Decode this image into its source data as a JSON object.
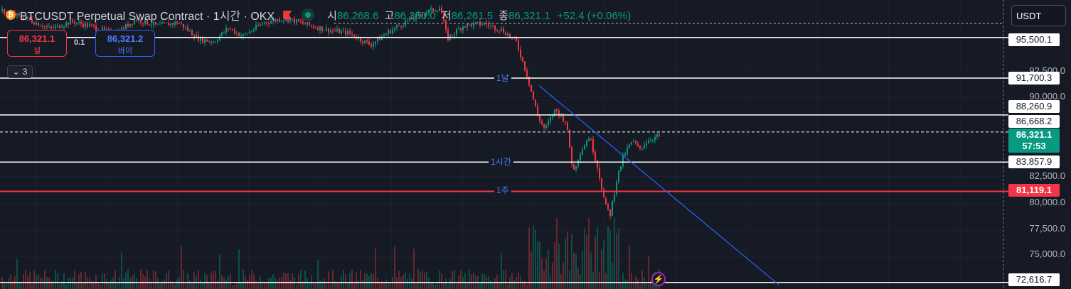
{
  "legend": {
    "coin_icon": "bitcoin-icon",
    "symbol": "BTCUSDT Perpetual Swap Contract · 1시간 · OKX",
    "open_key": "시",
    "open": "86,268.6",
    "high_key": "고",
    "high": "86,350.0",
    "low_key": "저",
    "low": "86,261.5",
    "close_key": "종",
    "close": "86,321.1",
    "change": "+52.4 (+0.06%)"
  },
  "trade": {
    "sell_price": "86,321.1",
    "sell_label": "셀",
    "quantity": "0.1",
    "buy_price": "86,321.2",
    "buy_label": "바이"
  },
  "indicator_toggle": "3",
  "currency": "USDT",
  "price_scale": [
    "92,500.0",
    "90,000.0",
    "82,500.0",
    "80,000.0",
    "77,500.0",
    "75,000.0"
  ],
  "price_labels": {
    "p95500": "95,500.1",
    "p91700": "91,700.3",
    "p88260": "88,260.9",
    "p86668": "86,668.2",
    "last_price": "86,321.1",
    "countdown": "57:53",
    "p83857": "83,857.9",
    "p81119": "81,119.1",
    "p72616": "72,616.7"
  },
  "line_tags": {
    "day": "1날",
    "hour": "1시간",
    "week": "1주"
  },
  "colors": {
    "bg": "#161a25",
    "up": "#089981",
    "down": "#f23645",
    "accent": "#2962ff"
  },
  "chart_data": {
    "type": "candlestick",
    "title": "BTCUSDT Perpetual Swap Contract · 1시간 · OKX",
    "ylim": [
      72000,
      99000
    ],
    "y_ticks": [
      75000,
      77500,
      80000,
      82500,
      90000,
      92500
    ],
    "horizontal_levels": [
      {
        "value": 95500.1,
        "color": "#ffffff"
      },
      {
        "value": 91700.3,
        "color": "#ffffff",
        "tag": "1날"
      },
      {
        "value": 88260.9,
        "color": "#ffffff"
      },
      {
        "value": 86668.2,
        "color": "#ffffff",
        "style": "dashed"
      },
      {
        "value": 83857.9,
        "color": "#ffffff",
        "tag": "1시간"
      },
      {
        "value": 81119.1,
        "color": "#f23645",
        "tag": "1주"
      },
      {
        "value": 72616.7,
        "color": "#ffffff"
      }
    ],
    "trendline": {
      "start": 91000,
      "end": 72400
    },
    "price_path": [
      {
        "t": 0,
        "p": 98000
      },
      {
        "t": 35,
        "p": 97300
      },
      {
        "t": 70,
        "p": 96300
      },
      {
        "t": 100,
        "p": 97000
      },
      {
        "t": 130,
        "p": 96500
      },
      {
        "t": 160,
        "p": 95800
      },
      {
        "t": 190,
        "p": 97200
      },
      {
        "t": 220,
        "p": 96600
      },
      {
        "t": 250,
        "p": 96900
      },
      {
        "t": 280,
        "p": 95300
      },
      {
        "t": 300,
        "p": 95100
      },
      {
        "t": 320,
        "p": 96400
      },
      {
        "t": 340,
        "p": 95600
      },
      {
        "t": 370,
        "p": 96900
      },
      {
        "t": 400,
        "p": 97300
      },
      {
        "t": 430,
        "p": 96700
      },
      {
        "t": 460,
        "p": 96200
      },
      {
        "t": 490,
        "p": 95900
      },
      {
        "t": 520,
        "p": 94800
      },
      {
        "t": 545,
        "p": 96000
      },
      {
        "t": 570,
        "p": 97000
      },
      {
        "t": 600,
        "p": 97900
      },
      {
        "t": 618,
        "p": 98300
      },
      {
        "t": 628,
        "p": 95400
      },
      {
        "t": 650,
        "p": 96600
      },
      {
        "t": 680,
        "p": 96800
      },
      {
        "t": 705,
        "p": 96200
      },
      {
        "t": 725,
        "p": 95100
      },
      {
        "t": 740,
        "p": 92000
      },
      {
        "t": 755,
        "p": 88200
      },
      {
        "t": 765,
        "p": 86900
      },
      {
        "t": 780,
        "p": 88800
      },
      {
        "t": 795,
        "p": 87600
      },
      {
        "t": 805,
        "p": 82900
      },
      {
        "t": 815,
        "p": 84800
      },
      {
        "t": 828,
        "p": 86300
      },
      {
        "t": 840,
        "p": 83200
      },
      {
        "t": 850,
        "p": 79800
      },
      {
        "t": 857,
        "p": 79000
      },
      {
        "t": 866,
        "p": 82200
      },
      {
        "t": 876,
        "p": 84500
      },
      {
        "t": 888,
        "p": 85800
      },
      {
        "t": 898,
        "p": 85100
      },
      {
        "t": 912,
        "p": 86000
      },
      {
        "t": 926,
        "p": 86321
      }
    ]
  }
}
